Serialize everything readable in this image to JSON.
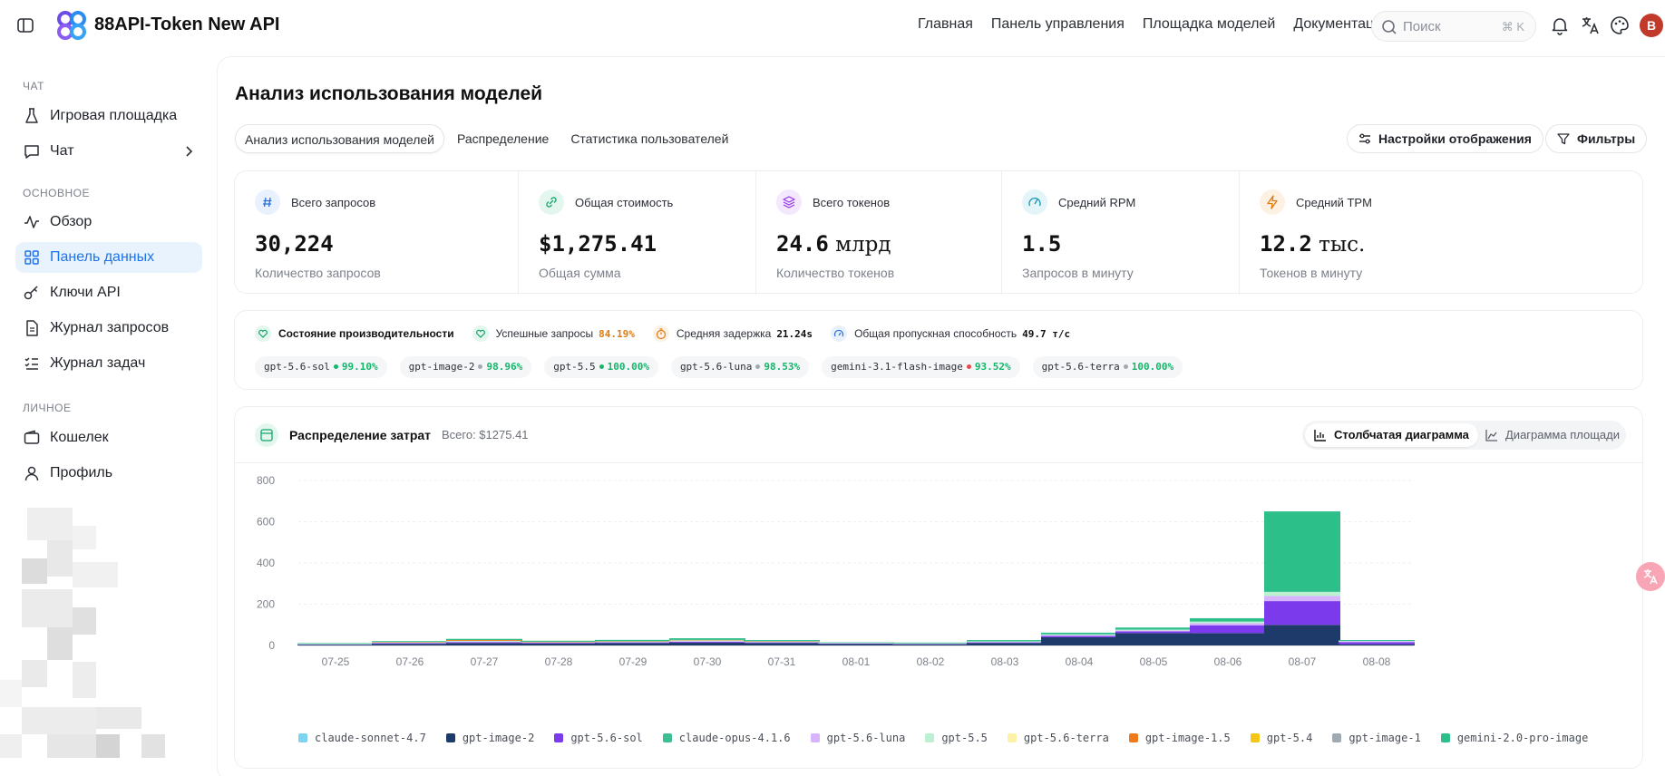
{
  "header": {
    "app_title": "88API-Token New API",
    "nav": [
      "Главная",
      "Панель управления",
      "Площадка моделей",
      "Документация"
    ],
    "search_placeholder": "Поиск",
    "search_shortcut": "⌘ K",
    "avatar_letter": "B",
    "avatar_color": "#c0392b"
  },
  "sidebar": {
    "section_chat": "ЧАТ",
    "section_main": "ОСНОВНОЕ",
    "section_personal": "ЛИЧНОЕ",
    "items": [
      {
        "label": "Игровая площадка",
        "icon": "flask-icon"
      },
      {
        "label": "Чат",
        "icon": "chat-icon"
      },
      {
        "label": "Обзор",
        "icon": "activity-icon"
      },
      {
        "label": "Панель данных",
        "icon": "grid-icon"
      },
      {
        "label": "Ключи API",
        "icon": "key-icon"
      },
      {
        "label": "Журнал запросов",
        "icon": "document-icon"
      },
      {
        "label": "Журнал задач",
        "icon": "list-icon"
      },
      {
        "label": "Кошелек",
        "icon": "wallet-icon"
      },
      {
        "label": "Профиль",
        "icon": "user-icon"
      }
    ],
    "active_item": "Панель данных",
    "accent": "#1d73e8"
  },
  "main": {
    "title": "Анализ использования моделей",
    "tabs": [
      "Анализ использования моделей",
      "Распределение",
      "Статистика пользователей"
    ],
    "display_settings": "Настройки отображения",
    "filters": "Фильтры"
  },
  "stats": [
    {
      "label": "Всего запросов",
      "value": "30,224",
      "unit": "",
      "sub": "Количество запросов",
      "icon": "hash-icon",
      "color": "#e8f1fd"
    },
    {
      "label": "Общая стоимость",
      "value": "$1,275.41",
      "unit": "",
      "sub": "Общая сумма",
      "icon": "link-icon",
      "color": "#e3f7ee"
    },
    {
      "label": "Всего токенов",
      "value": "24.6",
      "unit": " млрд",
      "sub": "Количество токенов",
      "icon": "layers-icon",
      "color": "#f3e8fd"
    },
    {
      "label": "Средний RPM",
      "value": "1.5",
      "unit": "",
      "sub": "Запросов в минуту",
      "icon": "gauge-icon",
      "color": "#e3f5f9"
    },
    {
      "label": "Средний TPM",
      "value": "12.2",
      "unit": " тыс.",
      "sub": "Токенов в минуту",
      "icon": "bolt-icon",
      "color": "#fdf1e3"
    }
  ],
  "performance": {
    "title": "Состояние производительности",
    "success_label": "Успешные запросы",
    "success_value": "84.19%",
    "latency_label": "Средняя задержка",
    "latency_value": "21.24s",
    "throughput_label": "Общая пропускная способность",
    "throughput_value": "49.7 т/с",
    "models": [
      {
        "name": "gpt-5.6-sol",
        "pct": "99.10%",
        "status": "#12b76a"
      },
      {
        "name": "gpt-image-2",
        "pct": "98.96%",
        "status": "#a3a8b0"
      },
      {
        "name": "gpt-5.5",
        "pct": "100.00%",
        "status": "#12b76a"
      },
      {
        "name": "gpt-5.6-luna",
        "pct": "98.53%",
        "status": "#a3a8b0"
      },
      {
        "name": "gemini-3.1-flash-image",
        "pct": "93.52%",
        "status": "#e5484d"
      },
      {
        "name": "gpt-5.6-terra",
        "pct": "100.00%",
        "status": "#a3a8b0"
      }
    ]
  },
  "cost_card": {
    "title": "Распределение затрат",
    "total": "Всего: $1275.41",
    "bar_label": "Столбчатая диаграмма",
    "area_label": "Диаграмма площади"
  },
  "chart_data": {
    "type": "bar",
    "stacked": true,
    "ylim": [
      0,
      800
    ],
    "yticks": [
      "800",
      "600",
      "400",
      "200",
      "0"
    ],
    "grid": true,
    "legend": "bottom",
    "categories": [
      "07-25",
      "07-26",
      "07-27",
      "07-28",
      "07-29",
      "07-30",
      "07-31",
      "08-01",
      "08-02",
      "08-03",
      "08-04",
      "08-05",
      "08-06",
      "08-07",
      "08-08"
    ],
    "series": [
      {
        "name": "claude-sonnet-4.7",
        "color": "#7dd3f0",
        "values": [
          0,
          0,
          0,
          0,
          0,
          0,
          0,
          0,
          0,
          0,
          0,
          0,
          0,
          0,
          0
        ]
      },
      {
        "name": "gpt-image-2",
        "color": "#1e3a6b",
        "values": [
          4,
          8,
          12,
          10,
          12,
          14,
          12,
          8,
          6,
          12,
          40,
          60,
          60,
          100,
          6
        ]
      },
      {
        "name": "gpt-5.6-sol",
        "color": "#7c3aed",
        "values": [
          2,
          3,
          4,
          3,
          3,
          4,
          3,
          2,
          2,
          3,
          6,
          8,
          38,
          115,
          10
        ]
      },
      {
        "name": "claude-opus-4.1.6",
        "color": "#3dbf94",
        "values": [
          0,
          0,
          0,
          0,
          0,
          0,
          0,
          0,
          0,
          0,
          0,
          0,
          0,
          0,
          0
        ]
      },
      {
        "name": "gpt-5.6-luna",
        "color": "#d8b4fe",
        "values": [
          1,
          2,
          3,
          2,
          2,
          3,
          2,
          2,
          1,
          2,
          4,
          5,
          10,
          25,
          4
        ]
      },
      {
        "name": "gpt-5.5",
        "color": "#bbf0d0",
        "values": [
          1,
          2,
          3,
          2,
          3,
          4,
          2,
          1,
          2,
          3,
          4,
          4,
          8,
          20,
          2
        ]
      },
      {
        "name": "gpt-5.6-terra",
        "color": "#fdf3a8",
        "values": [
          0,
          0,
          0,
          0,
          0,
          0,
          0,
          0,
          0,
          0,
          0,
          0,
          0,
          0,
          0
        ]
      },
      {
        "name": "gpt-image-1.5",
        "color": "#f07a1a",
        "values": [
          0,
          2,
          4,
          1,
          1,
          2,
          2,
          0,
          0,
          0,
          0,
          0,
          0,
          0,
          0
        ]
      },
      {
        "name": "gpt-5.4",
        "color": "#f5c518",
        "values": [
          0,
          0,
          0,
          0,
          0,
          0,
          0,
          0,
          0,
          0,
          0,
          0,
          0,
          0,
          0
        ]
      },
      {
        "name": "gpt-image-1",
        "color": "#a0aab4",
        "values": [
          0,
          0,
          0,
          0,
          0,
          0,
          0,
          0,
          0,
          0,
          0,
          0,
          0,
          0,
          0
        ]
      },
      {
        "name": "gemini-2.0-pro-image",
        "color": "#2cbf8a",
        "values": [
          3,
          4,
          6,
          5,
          6,
          8,
          5,
          2,
          3,
          6,
          8,
          10,
          16,
          390,
          4
        ]
      }
    ]
  }
}
